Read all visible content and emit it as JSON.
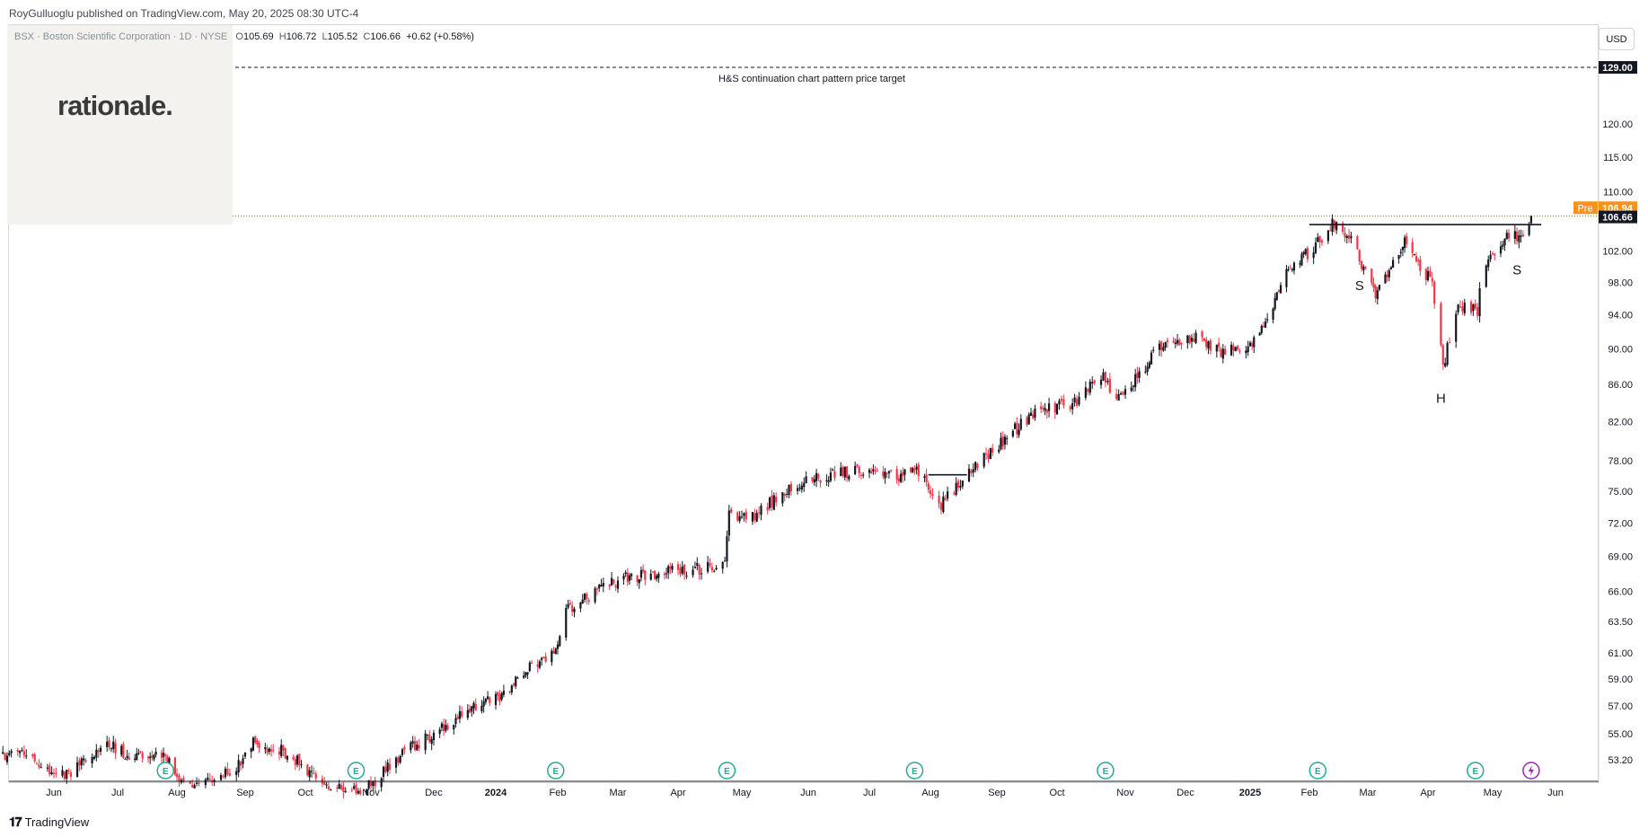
{
  "header": {
    "publisher_line": "RoyGulluoglu published on TradingView.com, May 20, 2025 08:30 UTC-4"
  },
  "watermark": {
    "brand": "rationale."
  },
  "legend": {
    "symbol": "BSX · Boston Scientific Corporation · 1D · NYSE",
    "open_label": "O",
    "open": "105.69",
    "high_label": "H",
    "high": "106.72",
    "low_label": "L",
    "low": "105.52",
    "close_label": "C",
    "close": "106.66",
    "change": "+0.62 (+0.58%)"
  },
  "currency": "USD",
  "footer": {
    "brand": "TradingView"
  },
  "colors": {
    "up": "#22ab94",
    "down": "#f23645",
    "candle": "#131722",
    "pre_badge": "#f7931a",
    "earnings": "#22ab94"
  },
  "chart_data": {
    "type": "candlestick",
    "symbol": "BSX",
    "interval": "1D",
    "ylim": [
      52.0,
      131.0
    ],
    "y_scale": "log",
    "y_ticks": [
      "53.20",
      "55.00",
      "57.00",
      "59.00",
      "61.00",
      "63.50",
      "66.00",
      "69.00",
      "72.00",
      "75.00",
      "78.00",
      "82.00",
      "86.00",
      "90.00",
      "94.00",
      "98.00",
      "102.00",
      "110.00",
      "115.00",
      "120.00"
    ],
    "x_ticks": [
      "Jun",
      "Jul",
      "Aug",
      "Sep",
      "Oct",
      "Nov",
      "Dec",
      "2024",
      "Feb",
      "Mar",
      "Apr",
      "May",
      "Jun",
      "Jul",
      "Aug",
      "Sep",
      "Oct",
      "Nov",
      "Dec",
      "2025",
      "Feb",
      "Mar",
      "Apr",
      "May",
      "Jun"
    ],
    "x_tick_bold": [
      "2024",
      "2025"
    ],
    "price_labels": [
      {
        "value": 129.0,
        "text": "129.00",
        "style": "dark"
      },
      {
        "value": 106.94,
        "text": "106.94",
        "prefix": "Pre",
        "style": "pre"
      },
      {
        "value": 106.66,
        "text": "106.66",
        "style": "dark"
      }
    ],
    "target": {
      "value": 129.0,
      "label": "H&S continuation chart pattern price target"
    },
    "necklines": [
      {
        "from": "2025-02-01",
        "to": "2025-05-25",
        "value": 105.5
      },
      {
        "from": "2024-07-31",
        "to": "2024-08-18",
        "value": 76.6
      }
    ],
    "annotations": [
      {
        "text": "S",
        "date": "2025-02-25",
        "value": 97.0
      },
      {
        "text": "H",
        "date": "2025-04-07",
        "value": 84.0
      },
      {
        "text": "S",
        "date": "2025-05-13",
        "value": 99.0
      }
    ],
    "earnings_dates": [
      "2023-07-26",
      "2023-10-25",
      "2024-01-31",
      "2024-04-24",
      "2024-07-24",
      "2024-10-23",
      "2025-02-05",
      "2025-04-23"
    ],
    "upcoming_event_date": "2025-05-20",
    "start_date": "2023-05-08",
    "end_date": "2025-05-20",
    "anchors": [
      [
        "2023-05-08",
        53.5
      ],
      [
        "2023-05-20",
        53.8
      ],
      [
        "2023-06-01",
        52.0
      ],
      [
        "2023-06-10",
        52.5
      ],
      [
        "2023-06-25",
        54.3
      ],
      [
        "2023-07-10",
        53.3
      ],
      [
        "2023-07-25",
        53.6
      ],
      [
        "2023-08-05",
        51.5
      ],
      [
        "2023-08-25",
        52.3
      ],
      [
        "2023-09-05",
        54.3
      ],
      [
        "2023-09-20",
        53.8
      ],
      [
        "2023-10-05",
        52.2
      ],
      [
        "2023-10-20",
        51.0
      ],
      [
        "2023-11-01",
        51.5
      ],
      [
        "2023-11-15",
        53.5
      ],
      [
        "2023-12-01",
        55.0
      ],
      [
        "2023-12-15",
        56.5
      ],
      [
        "2024-01-01",
        57.5
      ],
      [
        "2024-01-15",
        59.5
      ],
      [
        "2024-01-31",
        61.0
      ],
      [
        "2024-02-05",
        64.5
      ],
      [
        "2024-02-20",
        66.0
      ],
      [
        "2024-03-05",
        67.2
      ],
      [
        "2024-03-20",
        67.5
      ],
      [
        "2024-04-05",
        67.8
      ],
      [
        "2024-04-23",
        68.2
      ],
      [
        "2024-04-25",
        73.0
      ],
      [
        "2024-05-05",
        72.5
      ],
      [
        "2024-05-25",
        75.5
      ],
      [
        "2024-06-15",
        76.8
      ],
      [
        "2024-07-01",
        77.0
      ],
      [
        "2024-07-15",
        76.5
      ],
      [
        "2024-07-25",
        77.2
      ],
      [
        "2024-08-05",
        73.5
      ],
      [
        "2024-08-18",
        76.5
      ],
      [
        "2024-09-01",
        79.5
      ],
      [
        "2024-09-20",
        83.0
      ],
      [
        "2024-10-10",
        84.0
      ],
      [
        "2024-10-20",
        87.5
      ],
      [
        "2024-10-28",
        84.0
      ],
      [
        "2024-11-05",
        86.5
      ],
      [
        "2024-11-20",
        90.5
      ],
      [
        "2024-12-05",
        91.5
      ],
      [
        "2024-12-20",
        89.5
      ],
      [
        "2025-01-05",
        91.0
      ],
      [
        "2025-01-20",
        99.0
      ],
      [
        "2025-02-03",
        102.5
      ],
      [
        "2025-02-12",
        105.5
      ],
      [
        "2025-02-22",
        103.0
      ],
      [
        "2025-03-05",
        96.0
      ],
      [
        "2025-03-20",
        103.0
      ],
      [
        "2025-04-03",
        98.0
      ],
      [
        "2025-04-08",
        88.0
      ],
      [
        "2025-04-15",
        95.0
      ],
      [
        "2025-04-24",
        94.5
      ],
      [
        "2025-04-26",
        100.0
      ],
      [
        "2025-05-08",
        103.8
      ],
      [
        "2025-05-16",
        104.0
      ],
      [
        "2025-05-20",
        106.66
      ]
    ]
  }
}
